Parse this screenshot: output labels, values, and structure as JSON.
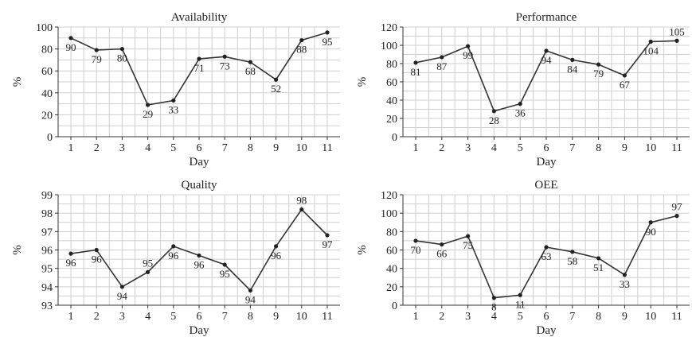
{
  "chart_data": [
    {
      "type": "line",
      "title": "Availability",
      "xlabel": "Day",
      "ylabel": "%",
      "categories": [
        "1",
        "2",
        "3",
        "4",
        "5",
        "6",
        "7",
        "8",
        "9",
        "10",
        "11"
      ],
      "values": [
        90,
        79,
        80,
        29,
        33,
        71,
        73,
        68,
        52,
        88,
        95
      ],
      "data_labels": [
        "90",
        "79",
        "80",
        "29",
        "33",
        "71",
        "73",
        "68",
        "52",
        "88",
        "95"
      ],
      "yticks": [
        "0",
        "20",
        "40",
        "60",
        "80",
        "100"
      ],
      "ylim": [
        0,
        100
      ],
      "grid": true
    },
    {
      "type": "line",
      "title": "Performance",
      "xlabel": "Day",
      "ylabel": "%",
      "categories": [
        "1",
        "2",
        "3",
        "4",
        "5",
        "6",
        "7",
        "8",
        "9",
        "10",
        "11"
      ],
      "values": [
        81,
        87,
        99,
        28,
        36,
        94,
        84,
        79,
        67,
        104,
        105
      ],
      "data_labels": [
        "81",
        "87",
        "99",
        "28",
        "36",
        "94",
        "84",
        "79",
        "67",
        "104",
        "105"
      ],
      "yticks": [
        "0",
        "20",
        "40",
        "60",
        "80",
        "100",
        "120"
      ],
      "ylim": [
        0,
        120
      ],
      "grid": true
    },
    {
      "type": "line",
      "title": "Quality",
      "xlabel": "Day",
      "ylabel": "%",
      "categories": [
        "1",
        "2",
        "3",
        "4",
        "5",
        "6",
        "7",
        "8",
        "9",
        "10",
        "11"
      ],
      "values": [
        95.8,
        96.0,
        94.0,
        94.8,
        96.2,
        95.7,
        95.2,
        93.8,
        96.2,
        98.2,
        96.8
      ],
      "data_labels": [
        "96",
        "96",
        "94",
        "95",
        "96",
        "96",
        "95",
        "94",
        "96",
        "98",
        "97"
      ],
      "yticks": [
        "93",
        "94",
        "95",
        "96",
        "97",
        "98",
        "99"
      ],
      "ylim": [
        93,
        99
      ],
      "grid": true
    },
    {
      "type": "line",
      "title": "OEE",
      "xlabel": "Day",
      "ylabel": "%",
      "categories": [
        "1",
        "2",
        "3",
        "4",
        "5",
        "6",
        "7",
        "8",
        "9",
        "10",
        "11"
      ],
      "values": [
        70,
        66,
        75,
        8,
        11,
        63,
        58,
        51,
        33,
        90,
        97
      ],
      "data_labels": [
        "70",
        "66",
        "75",
        "8",
        "11",
        "63",
        "58",
        "51",
        "33",
        "90",
        "97"
      ],
      "yticks": [
        "0",
        "20",
        "40",
        "60",
        "80",
        "100",
        "120"
      ],
      "ylim": [
        0,
        120
      ],
      "grid": true
    }
  ]
}
